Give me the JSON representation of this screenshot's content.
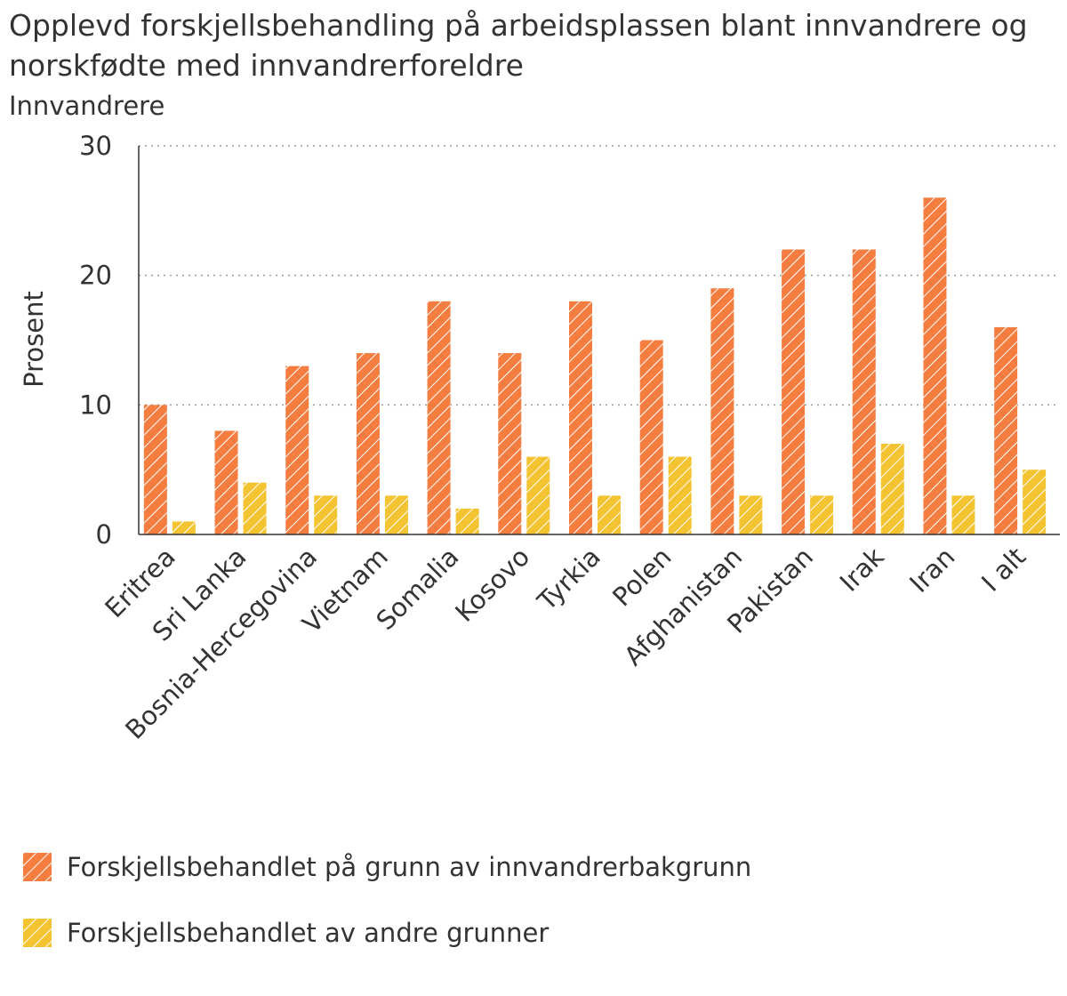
{
  "title": "Opplevd forskjellsbehandling på arbeidsplassen blant innvandrere og norskfødte med innvandrerforeldre",
  "subtitle": "Innvandrere",
  "colors": {
    "series1": "#f57d40",
    "series2": "#f4c331",
    "grid": "#999999",
    "axis": "#333333",
    "text": "#333333"
  },
  "legend": [
    {
      "label": "Forskjellsbehandlet på grunn av innvandrerbakgrunn"
    },
    {
      "label": "Forskjellsbehandlet av andre grunner"
    }
  ],
  "chart_data": {
    "type": "bar",
    "title": "Opplevd forskjellsbehandling på arbeidsplassen blant innvandrere og norskfødte med innvandrerforeldre",
    "subtitle": "Innvandrere",
    "ylabel": "Prosent",
    "ylim": [
      0,
      30
    ],
    "yticks": [
      0,
      10,
      20,
      30
    ],
    "grid": true,
    "legend_position": "bottom",
    "categories": [
      "Eritrea",
      "Sri Lanka",
      "Bosnia-Hercegovina",
      "Vietnam",
      "Somalia",
      "Kosovo",
      "Tyrkia",
      "Polen",
      "Afghanistan",
      "Pakistan",
      "Irak",
      "Iran",
      "I alt"
    ],
    "series": [
      {
        "name": "Forskjellsbehandlet på grunn av innvandrerbakgrunn",
        "values": [
          10,
          8,
          13,
          14,
          18,
          14,
          18,
          15,
          19,
          22,
          22,
          26,
          16
        ]
      },
      {
        "name": "Forskjellsbehandlet av andre grunner",
        "values": [
          1,
          4,
          3,
          3,
          2,
          6,
          3,
          6,
          3,
          3,
          7,
          3,
          5
        ]
      }
    ]
  }
}
